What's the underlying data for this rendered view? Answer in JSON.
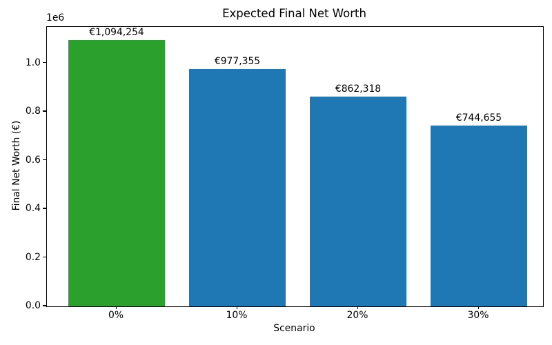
{
  "chart_data": {
    "type": "bar",
    "title": "Expected Final Net Worth",
    "xlabel": "Scenario",
    "ylabel": "Final Net Worth (€)",
    "y_offset_text": "1e6",
    "categories": [
      "0%",
      "10%",
      "20%",
      "30%"
    ],
    "values": [
      1094254,
      977355,
      862318,
      744655
    ],
    "bar_labels": [
      "€1,094,254",
      "€977,355",
      "€862,318",
      "€744,655"
    ],
    "bar_colors": [
      "#2ca02c",
      "#1f77b4",
      "#1f77b4",
      "#1f77b4"
    ],
    "ylim": [
      0,
      1148967
    ],
    "yticks": {
      "values": [
        0,
        200000,
        400000,
        600000,
        800000,
        1000000
      ],
      "labels": [
        "0.0",
        "0.2",
        "0.4",
        "0.6",
        "0.8",
        "1.0"
      ]
    },
    "grid": false,
    "legend_position": "none",
    "background_color": "#ffffff",
    "text_color": "#000000"
  }
}
